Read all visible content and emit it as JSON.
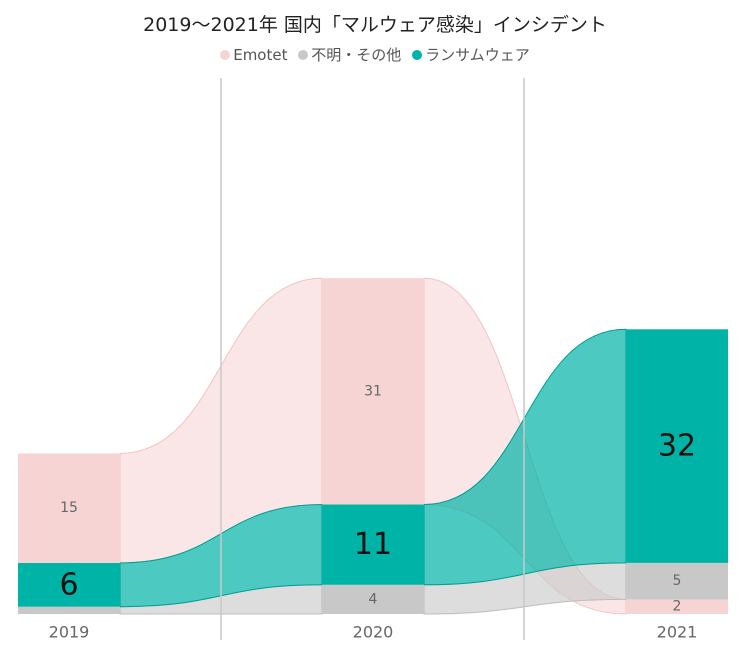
{
  "chart_data": {
    "type": "area",
    "title": "2019〜2021年  国内「マルウェア感染」インシデント",
    "categories": [
      "2019",
      "2020",
      "2021"
    ],
    "series": [
      {
        "name": "Emotet",
        "color": "#f7d4d4",
        "values": [
          15,
          31,
          2
        ]
      },
      {
        "name": "不明・その他",
        "color": "#c8c8c8",
        "values": [
          1,
          4,
          5
        ]
      },
      {
        "name": "ランサムウェア",
        "color": "#00b3a7",
        "values": [
          6,
          11,
          32
        ]
      }
    ],
    "stack_order_bottom_to_top": [
      [
        "不明・その他",
        "ランサムウェア",
        "Emotet"
      ],
      [
        "不明・その他",
        "ランサムウェア",
        "Emotet"
      ],
      [
        "Emotet",
        "不明・その他",
        "ランサムウェア"
      ]
    ],
    "labels": [
      [
        {
          "series": "Emotet",
          "text": "15"
        },
        {
          "series": "ランサムウェア",
          "text": "6"
        }
      ],
      [
        {
          "series": "Emotet",
          "text": "31"
        },
        {
          "series": "ランサムウェア",
          "text": "11"
        },
        {
          "series": "不明・その他",
          "text": "4"
        }
      ],
      [
        {
          "series": "ランサムウェア",
          "text": "32"
        },
        {
          "series": "不明・その他",
          "text": "5"
        },
        {
          "series": "Emotet",
          "text": "2"
        }
      ]
    ],
    "legend_position": "top-center",
    "grid": false
  }
}
